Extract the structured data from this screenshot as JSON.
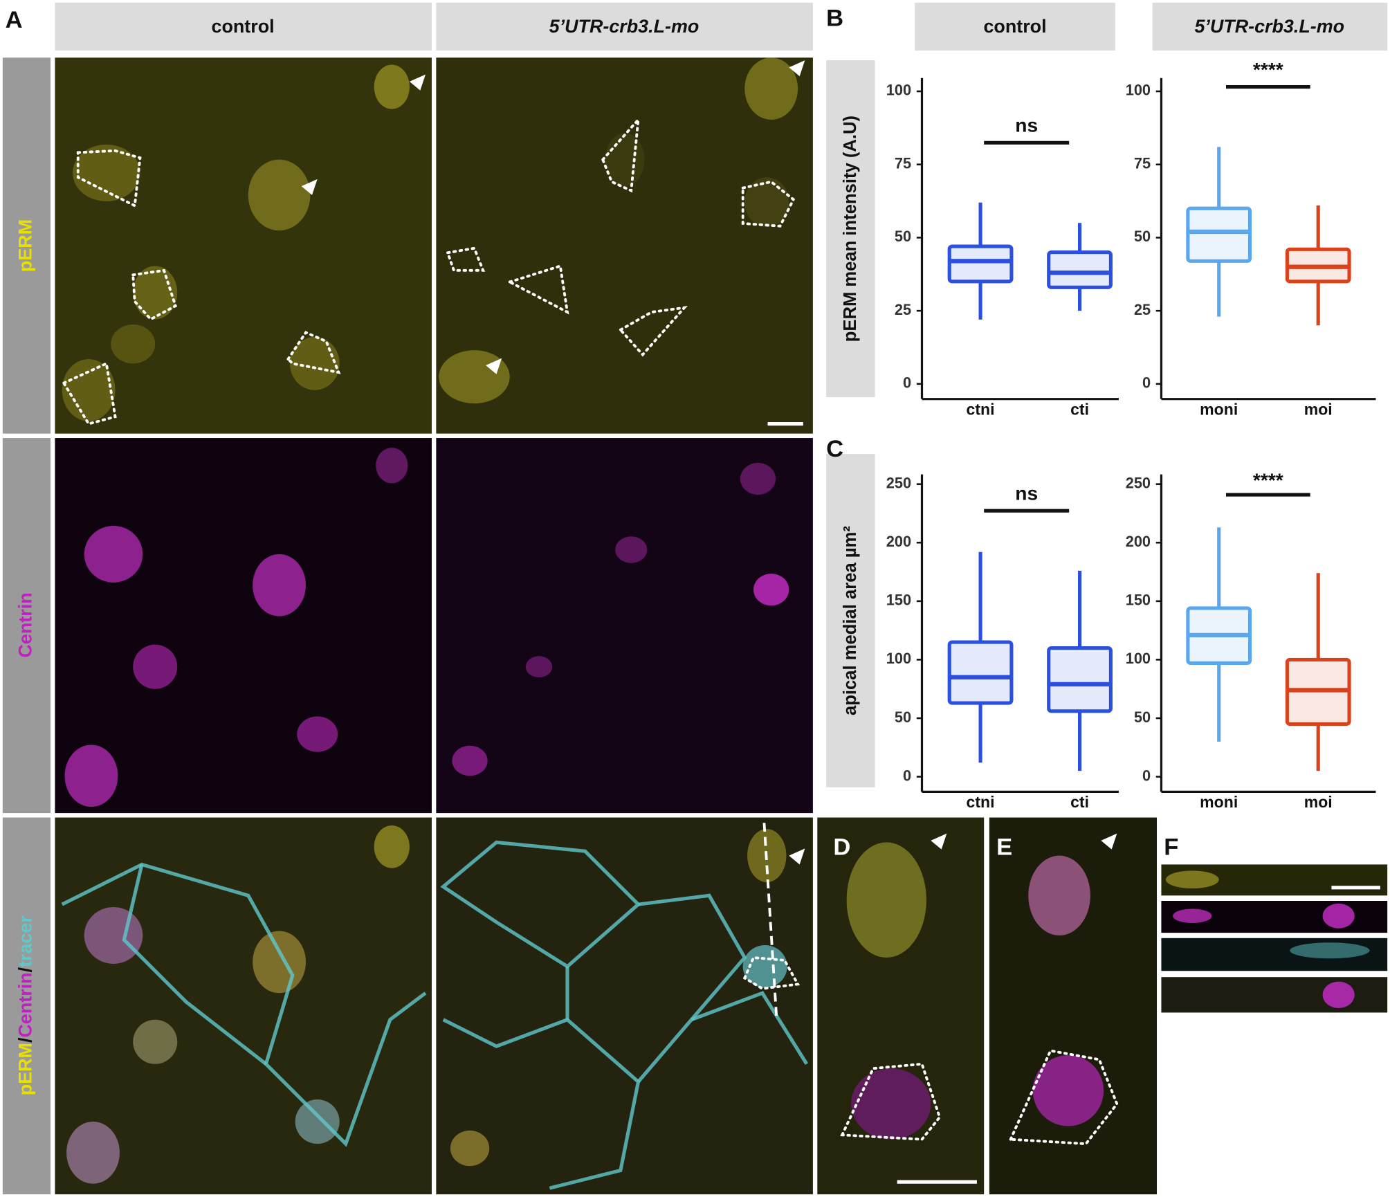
{
  "figure": {
    "panel_labels": [
      "A",
      "B",
      "C",
      "D",
      "E",
      "F"
    ],
    "column_headers": [
      "control",
      "5’UTR-crb3.L-mo"
    ],
    "row_labels": [
      [
        "pERM"
      ],
      [
        "Centrin"
      ],
      [
        "pERM",
        "/",
        "Centrin",
        "/",
        "tracer"
      ]
    ]
  },
  "chart_data": [
    {
      "type": "box",
      "title": "control",
      "ylabel": "pERM mean intensity (A.U)",
      "categories": [
        "ctni",
        "cti"
      ],
      "boxes": [
        {
          "min": 22,
          "q1": 35,
          "median": 42,
          "q3": 47,
          "max": 62,
          "color": "#2b50e0"
        },
        {
          "min": 25,
          "q1": 33,
          "median": 38,
          "q3": 45,
          "max": 55,
          "color": "#2b50e0"
        }
      ],
      "ylim": [
        0,
        100
      ],
      "yticks": [
        0,
        25,
        50,
        75,
        100
      ],
      "annotation": "ns"
    },
    {
      "type": "box",
      "title": "5’UTR-crb3.L-mo",
      "categories": [
        "moni",
        "moi"
      ],
      "boxes": [
        {
          "min": 23,
          "q1": 42,
          "median": 52,
          "q3": 60,
          "max": 81,
          "color": "#5aa7ec"
        },
        {
          "min": 20,
          "q1": 35,
          "median": 40,
          "q3": 46,
          "max": 61,
          "color": "#d9421b"
        }
      ],
      "ylim": [
        0,
        100
      ],
      "yticks": [
        0,
        25,
        50,
        75,
        100
      ],
      "annotation": "****"
    },
    {
      "type": "box",
      "ylabel": "apical medial area µm²",
      "categories": [
        "ctni",
        "cti"
      ],
      "boxes": [
        {
          "min": 12,
          "q1": 63,
          "median": 85,
          "q3": 115,
          "max": 192,
          "color": "#2b50e0"
        },
        {
          "min": 5,
          "q1": 56,
          "median": 79,
          "q3": 110,
          "max": 176,
          "color": "#2b50e0"
        }
      ],
      "ylim": [
        0,
        250
      ],
      "yticks": [
        0,
        50,
        100,
        150,
        200,
        250
      ],
      "annotation": "ns"
    },
    {
      "type": "box",
      "categories": [
        "moni",
        "moi"
      ],
      "boxes": [
        {
          "min": 30,
          "q1": 97,
          "median": 121,
          "q3": 144,
          "max": 213,
          "color": "#5aa7ec"
        },
        {
          "min": 5,
          "q1": 45,
          "median": 74,
          "q3": 100,
          "max": 174,
          "color": "#d9421b"
        }
      ],
      "ylim": [
        0,
        250
      ],
      "yticks": [
        0,
        50,
        100,
        150,
        200,
        250
      ],
      "annotation": "****"
    }
  ]
}
